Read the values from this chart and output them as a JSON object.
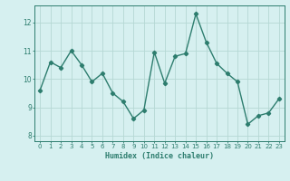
{
  "x": [
    0,
    1,
    2,
    3,
    4,
    5,
    6,
    7,
    8,
    9,
    10,
    11,
    12,
    13,
    14,
    15,
    16,
    17,
    18,
    19,
    20,
    21,
    22,
    23
  ],
  "y": [
    9.6,
    10.6,
    10.4,
    11.0,
    10.5,
    9.9,
    10.2,
    9.5,
    9.2,
    8.6,
    8.9,
    10.95,
    9.85,
    10.8,
    10.9,
    12.3,
    11.3,
    10.55,
    10.2,
    9.9,
    8.4,
    8.7,
    8.8,
    9.3
  ],
  "line_color": "#2d7d6e",
  "bg_color": "#d6f0f0",
  "grid_color": "#b5d8d4",
  "xlabel": "Humidex (Indice chaleur)",
  "ylim": [
    7.8,
    12.6
  ],
  "xlim": [
    -0.5,
    23.5
  ],
  "yticks": [
    8,
    9,
    10,
    11,
    12
  ],
  "xticks": [
    0,
    1,
    2,
    3,
    4,
    5,
    6,
    7,
    8,
    9,
    10,
    11,
    12,
    13,
    14,
    15,
    16,
    17,
    18,
    19,
    20,
    21,
    22,
    23
  ],
  "axis_color": "#2d7d6e",
  "marker": "D",
  "markersize": 2.2,
  "linewidth": 1.0,
  "tick_fontsize": 5.0,
  "xlabel_fontsize": 6.0
}
